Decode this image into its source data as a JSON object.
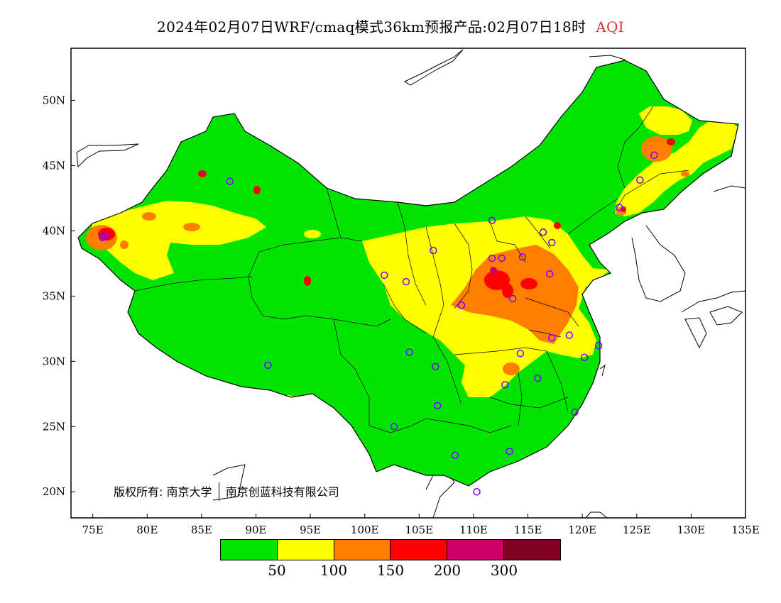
{
  "title": {
    "main": "2024年02月07日WRF/cmaq模式36km预报产品:02月07日18时",
    "variable": "AQI"
  },
  "axes": {
    "longitude_ticks": [
      "75E",
      "80E",
      "85E",
      "90E",
      "95E",
      "100E",
      "105E",
      "110E",
      "115E",
      "120E",
      "125E",
      "130E",
      "135E"
    ],
    "latitude_ticks": [
      "50N",
      "45N",
      "40N",
      "35N",
      "30N",
      "25N",
      "20N"
    ],
    "lon_range": [
      73,
      135
    ],
    "lat_range": [
      18,
      54
    ]
  },
  "copyright": {
    "label": "版权所有:",
    "org1": "南京大学",
    "org2": "南京创蓝科技有限公司"
  },
  "legend": {
    "colors": [
      "#00e400",
      "#ffff00",
      "#ff7e00",
      "#ff0000",
      "#cc0066",
      "#7e0023"
    ],
    "labels": [
      "50",
      "100",
      "150",
      "200",
      "300"
    ]
  },
  "colors": {
    "good": "#00e400",
    "moderate": "#ffff00",
    "sensitive": "#ff7e00",
    "unhealthy": "#ff0000",
    "very_unhealthy": "#cc0066",
    "hazardous": "#7e0023",
    "station_marker": "#7a00ff"
  },
  "stations": [
    [
      75.9,
      39.5
    ],
    [
      87.6,
      43.8
    ],
    [
      106.3,
      38.5
    ],
    [
      101.8,
      36.6
    ],
    [
      103.8,
      36.1
    ],
    [
      91.1,
      29.7
    ],
    [
      104.1,
      30.7
    ],
    [
      106.5,
      29.6
    ],
    [
      106.7,
      26.6
    ],
    [
      102.7,
      25.0
    ],
    [
      108.3,
      22.8
    ],
    [
      110.3,
      20.0
    ],
    [
      113.3,
      23.1
    ],
    [
      119.3,
      26.1
    ],
    [
      115.9,
      28.7
    ],
    [
      112.9,
      28.2
    ],
    [
      114.3,
      30.6
    ],
    [
      117.2,
      31.8
    ],
    [
      118.8,
      32.0
    ],
    [
      120.2,
      30.3
    ],
    [
      121.5,
      31.2
    ],
    [
      113.6,
      34.8
    ],
    [
      108.9,
      34.3
    ],
    [
      111.7,
      37.9
    ],
    [
      112.6,
      37.9
    ],
    [
      114.5,
      38.0
    ],
    [
      116.4,
      39.9
    ],
    [
      117.2,
      39.1
    ],
    [
      117.0,
      36.7
    ],
    [
      111.7,
      40.8
    ],
    [
      123.4,
      41.8
    ],
    [
      125.3,
      43.9
    ],
    [
      126.6,
      45.8
    ]
  ]
}
